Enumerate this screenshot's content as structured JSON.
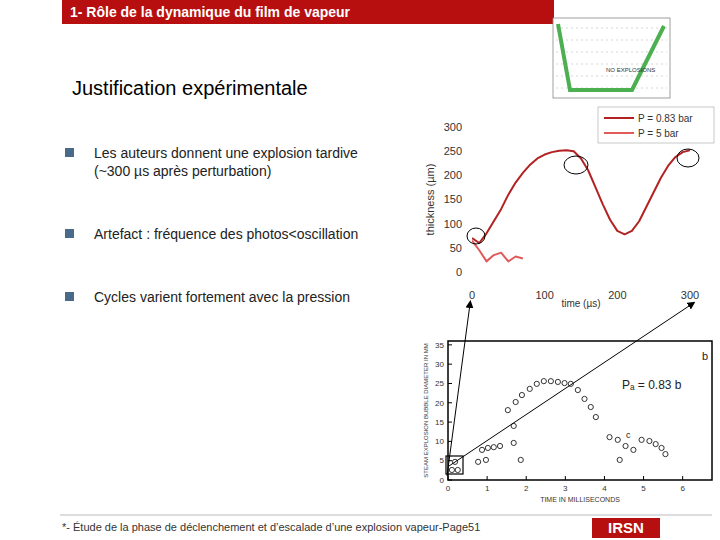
{
  "slide": {
    "header": "1- Rôle de la dynamique du film de vapeur",
    "subtitle": "Justification expérimentale",
    "bullets": [
      [
        "Les auteurs donnent une explosion tardive",
        "(~300 µs après perturbation)"
      ],
      [
        "Artefact : fréquence des photos<oscillation"
      ],
      [
        "Cycles varient fortement avec la pression"
      ]
    ],
    "inset_label": "NO EXPLOSIONS",
    "footer": "*- Étude de la phase de déclenchement et d’escalade d’une explosion vapeur-Page51",
    "logo": "IRSN"
  },
  "chart_data": [
    {
      "type": "line",
      "x_label": "time (µs)",
      "y_label": "thickness (µm)",
      "x": [
        0,
        10,
        20,
        30,
        40,
        50,
        60,
        70,
        80,
        90,
        100,
        110,
        120,
        130,
        140,
        150,
        160,
        170,
        180,
        190,
        200,
        210,
        220,
        230,
        240,
        250,
        260,
        270,
        280,
        290,
        300
      ],
      "series": [
        {
          "name": "P = 0.83 bar",
          "color": "#b22222",
          "values": [
            70,
            60,
            80,
            105,
            130,
            160,
            185,
            205,
            222,
            235,
            243,
            248,
            251,
            252,
            250,
            235,
            210,
            175,
            140,
            108,
            85,
            78,
            85,
            105,
            135,
            165,
            195,
            220,
            238,
            248,
            252
          ]
        },
        {
          "name": "P = 5 bar",
          "color": "#e05a5a",
          "values": [
            65,
            45,
            22,
            35,
            40,
            22,
            32,
            28,
            null,
            null,
            null,
            null,
            null,
            null,
            null,
            null,
            null,
            null,
            null,
            null,
            null,
            null,
            null,
            null,
            null,
            null,
            null,
            null,
            null,
            null,
            null
          ]
        }
      ],
      "xlim": [
        0,
        300
      ],
      "xticks": [
        0,
        100,
        200,
        300
      ],
      "ylim": [
        0,
        300
      ],
      "yticks": [
        0,
        50,
        100,
        150,
        200,
        250,
        300
      ],
      "legend": "upper right",
      "grid": false
    },
    {
      "type": "scatter",
      "x_label": "TIME IN MILLISECONDS",
      "y_label": "STEAM EXPLOSION BUBBLE DIAMETER IN MM",
      "annotations": [
        "Pₐ = 0.83 b",
        "b",
        "c"
      ],
      "x": [
        0.1,
        0.25,
        0.18,
        0.77,
        0.87,
        1.02,
        1.17,
        1.33,
        0.97,
        1.68,
        1.53,
        1.73,
        1.89,
        2.09,
        2.27,
        2.45,
        2.63,
        2.81,
        2.98,
        3.14,
        3.32,
        3.49,
        3.65,
        3.78,
        1.68,
        1.86,
        4.13,
        4.34,
        4.54,
        4.74,
        4.95,
        5.15,
        5.31,
        5.46,
        5.56,
        4.39
      ],
      "values": [
        2.6,
        2.6,
        4.7,
        4.7,
        7.8,
        8.3,
        8.5,
        8.8,
        5.2,
        14.0,
        18.1,
        20.2,
        22.0,
        23.6,
        24.9,
        25.6,
        25.6,
        25.4,
        25.1,
        24.9,
        23.3,
        21.0,
        18.9,
        16.3,
        9.6,
        5.2,
        11.1,
        10.4,
        8.8,
        7.8,
        10.4,
        10.1,
        9.3,
        8.3,
        6.7,
        5.2
      ],
      "color": "#333333",
      "marker": "circle",
      "xlim": [
        0,
        6.75
      ],
      "xticks": [
        0,
        1,
        2,
        3,
        4,
        5,
        6
      ],
      "ylim": [
        0,
        36
      ],
      "yticks": [
        0,
        5,
        10,
        15,
        20,
        25,
        30,
        35
      ],
      "grid": false
    }
  ]
}
